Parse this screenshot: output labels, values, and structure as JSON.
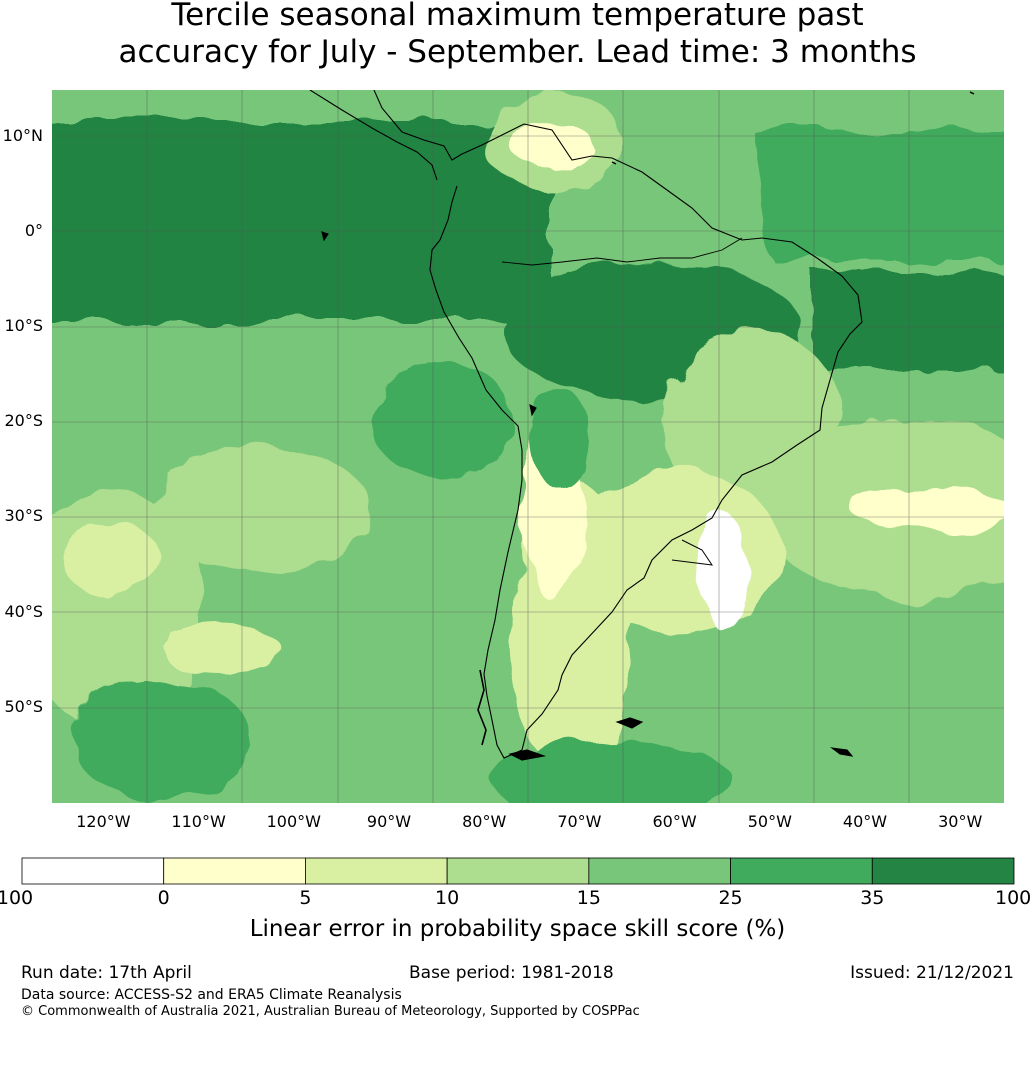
{
  "title": {
    "line1": "Tercile seasonal maximum temperature past",
    "line2": "accuracy for July - September. Lead time: 3 months"
  },
  "map": {
    "lat_labels": [
      "10°N",
      "0°",
      "10°S",
      "20°S",
      "30°S",
      "40°S",
      "50°S"
    ],
    "lon_labels": [
      "120°W",
      "110°W",
      "100°W",
      "90°W",
      "80°W",
      "70°W",
      "60°W",
      "50°W",
      "40°W",
      "30°W"
    ],
    "lat_values": [
      10,
      0,
      -10,
      -20,
      -30,
      -40,
      -50
    ],
    "lon_values": [
      -120,
      -110,
      -100,
      -90,
      -80,
      -70,
      -60,
      -50,
      -40,
      -30
    ]
  },
  "colorbar": {
    "labels": [
      "-100",
      "0",
      "5",
      "10",
      "15",
      "25",
      "35",
      "100"
    ],
    "colors": [
      "#ffffff",
      "#ffffcc",
      "#d9f0a3",
      "#addd8e",
      "#78c679",
      "#41ab5d",
      "#238443"
    ],
    "title": "Linear error in probability space skill score (%)"
  },
  "footer": {
    "run_date": "Run date: 17th April",
    "base_period": "Base period: 1981-2018",
    "issued": "Issued: 21/12/2021",
    "source": "Data source: ACCESS-S2 and ERA5 Climate Reanalysis",
    "copyright": "© Commonwealth of Australia 2021, Australian Bureau of Meteorology, Supported by COSPPac"
  }
}
